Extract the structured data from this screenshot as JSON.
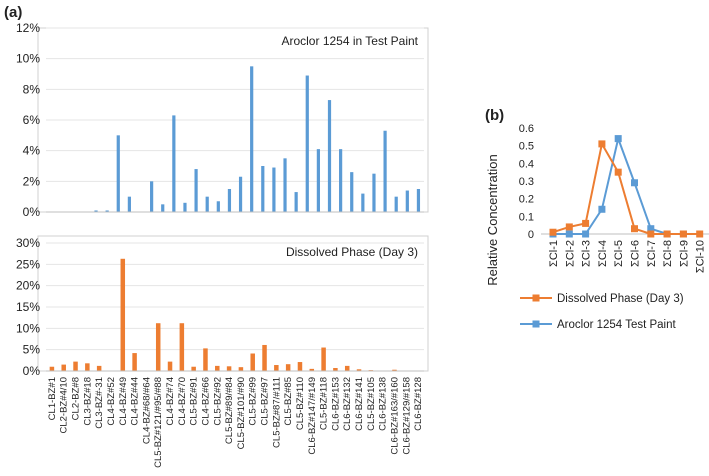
{
  "panel_a_label": "(a)",
  "panel_b_label": "(b)",
  "chart_data": [
    {
      "id": "top",
      "type": "bar",
      "title": "Aroclor 1254 in Test Paint",
      "color": "#5b9bd5",
      "ylim": [
        0,
        12
      ],
      "yticks": [
        0,
        2,
        4,
        6,
        8,
        10,
        12
      ],
      "ytick_labels": [
        "0%",
        "2%",
        "4%",
        "6%",
        "8%",
        "10%",
        "12%"
      ],
      "values": [
        0,
        0,
        0,
        0,
        0.1,
        0.1,
        5.0,
        1.0,
        0,
        2.0,
        0.5,
        6.3,
        0.6,
        2.8,
        1.0,
        0.7,
        1.5,
        2.3,
        9.5,
        3.0,
        2.9,
        3.5,
        1.3,
        8.9,
        4.1,
        7.3,
        4.1,
        2.6,
        1.2,
        2.5,
        5.3,
        1.0,
        1.4,
        1.5
      ]
    },
    {
      "id": "bottom",
      "type": "bar",
      "title": "Dissolved Phase (Day 3)",
      "color": "#ed7d31",
      "ylim": [
        0,
        30
      ],
      "yticks": [
        0,
        5,
        10,
        15,
        20,
        25,
        30
      ],
      "ytick_labels": [
        "0%",
        "5%",
        "10%",
        "15%",
        "20%",
        "25%",
        "30%"
      ],
      "categories": [
        "CL1-BZ#1",
        "CL2-BZ#4/10",
        "CL2-BZ#8",
        "CL3-BZ#18",
        "CL3-BZ#-31",
        "CL4-BZ#52",
        "CL4-BZ#49",
        "CL4-BZ#44",
        "CL4-BZ#68/#64",
        "CL5-BZ#121/#95/#88",
        "CL4-BZ#74",
        "CL4-BZ#70",
        "CL5-BZ#91",
        "CL4-BZ#66",
        "CL5-BZ#92",
        "CL5-BZ#89/#84",
        "CL5-BZ#101/#90",
        "CL5-BZ#99",
        "CL5-BZ#97",
        "CL5-BZ#87/#111",
        "CL5-BZ#85",
        "CL5-BZ#110",
        "CL6-BZ#147/#149",
        "CL5-BZ#118",
        "CL6-BZ#153",
        "CL6-BZ#132",
        "CL6-BZ#141",
        "CL5-BZ#105",
        "CL6-BZ#138",
        "CL6-BZ#163/#160",
        "CL6-BZ#129/#158",
        "CL6-BZ#128"
      ],
      "values": [
        1.0,
        1.5,
        2.2,
        1.8,
        1.2,
        0,
        26.3,
        4.2,
        0,
        11.2,
        2.2,
        11.2,
        1.0,
        5.3,
        1.2,
        1.1,
        0.9,
        4.1,
        6.1,
        1.4,
        1.6,
        2.1,
        0.5,
        5.5,
        0.7,
        1.2,
        0.4,
        0.2,
        0,
        0.3,
        0.1,
        0
      ]
    },
    {
      "id": "line",
      "type": "line",
      "xlabel": "",
      "ylabel": "Relative Concentration",
      "ylim": [
        0,
        0.6
      ],
      "yticks": [
        0,
        0.1,
        0.2,
        0.3,
        0.4,
        0.5,
        0.6
      ],
      "ytick_labels": [
        "0",
        "0.1",
        "0.2",
        "0.3",
        "0.4",
        "0.5",
        "0.6"
      ],
      "categories": [
        "ΣCl-1",
        "ΣCl-2",
        "ΣCl-3",
        "ΣCl-4",
        "ΣCl-5",
        "ΣCl-6",
        "ΣCl-7",
        "ΣCl-8",
        "ΣCl-9",
        "ΣCl-10"
      ],
      "series": [
        {
          "name": "Dissolved Phase (Day 3)",
          "color": "#ed7d31",
          "values": [
            0.01,
            0.04,
            0.06,
            0.51,
            0.35,
            0.03,
            0.0,
            0.0,
            0.0,
            0.0
          ]
        },
        {
          "name": "Aroclor 1254 Test Paint",
          "color": "#5b9bd5",
          "values": [
            0.0,
            0.0,
            0.0,
            0.14,
            0.54,
            0.29,
            0.03,
            0.0,
            0.0,
            null
          ]
        }
      ],
      "legend": "bottom"
    }
  ]
}
